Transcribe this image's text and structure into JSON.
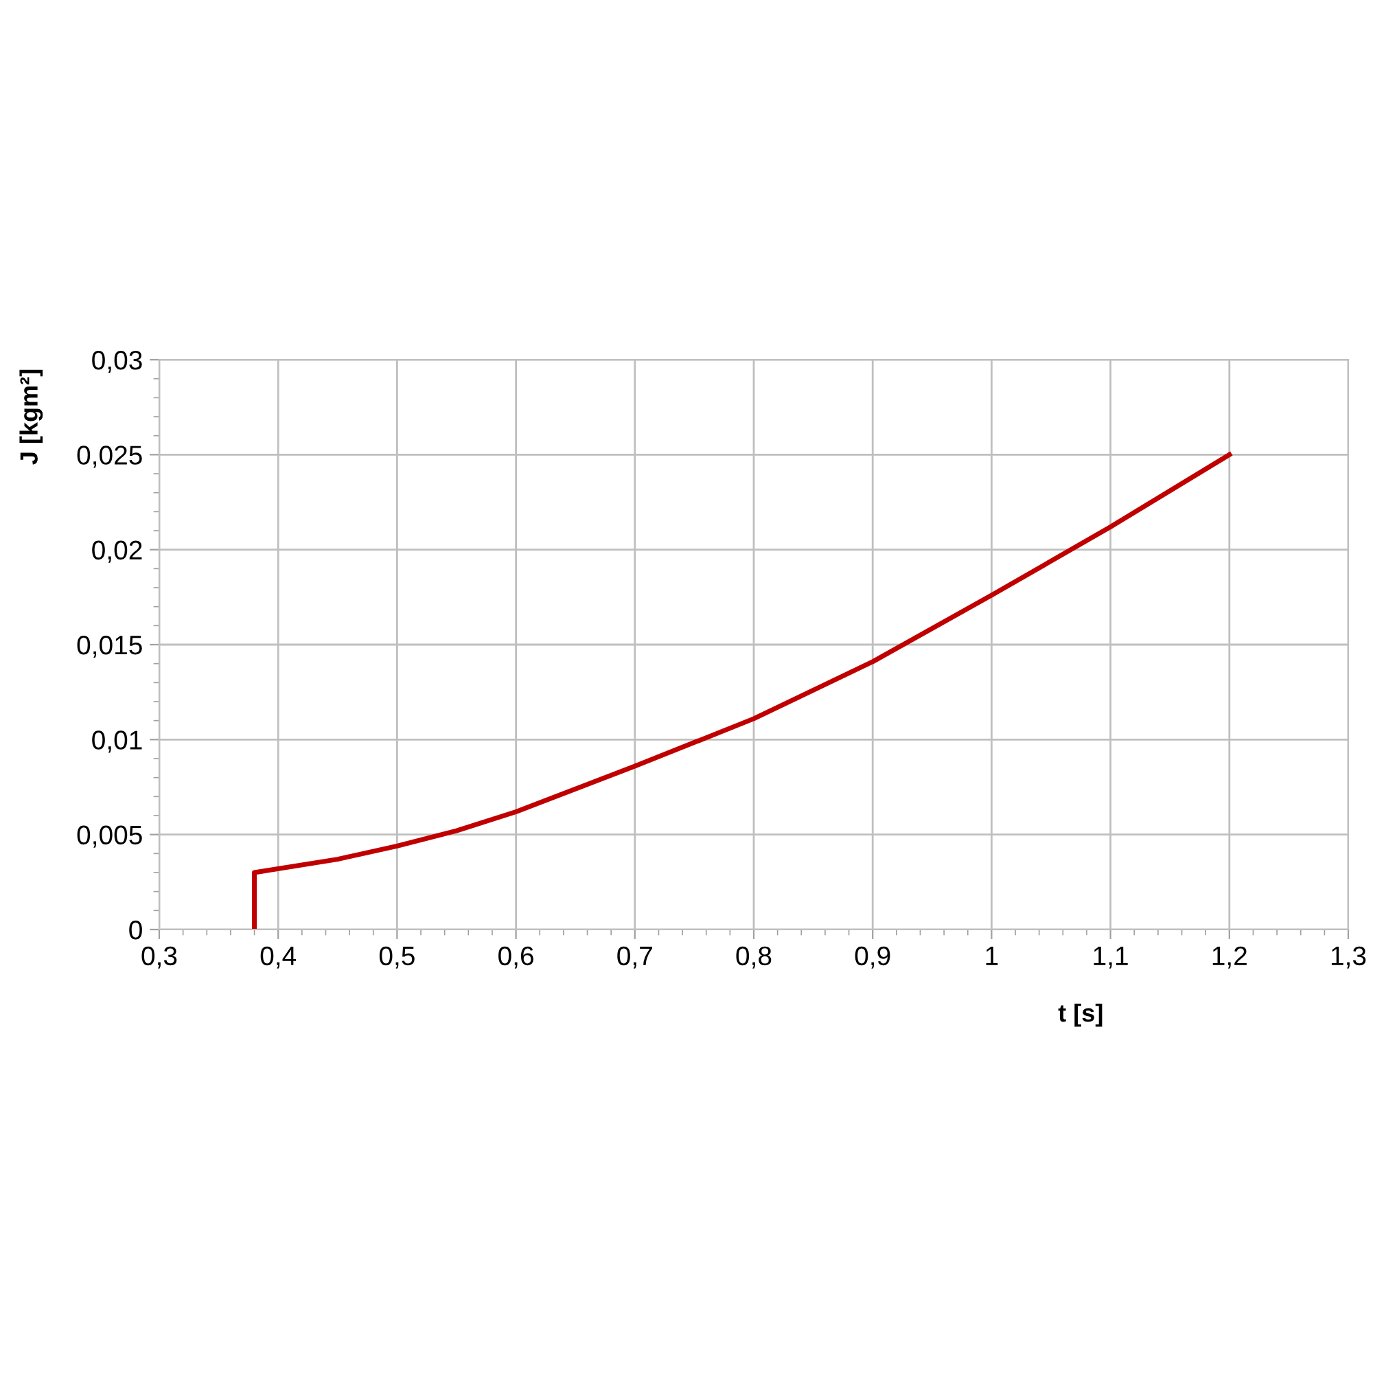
{
  "chart_data": {
    "type": "line",
    "xlabel": "t [s]",
    "ylabel": "J [kgm²]",
    "series": [
      {
        "color": "#c00000",
        "x": [
          0.38,
          0.38,
          0.45,
          0.5,
          0.55,
          0.6,
          0.7,
          0.8,
          0.9,
          1.0,
          1.1,
          1.2
        ],
        "values": [
          0,
          0.003,
          0.0037,
          0.0044,
          0.0052,
          0.0062,
          0.0086,
          0.0111,
          0.0141,
          0.0176,
          0.0212,
          0.025
        ]
      }
    ],
    "xlim": [
      0.3,
      1.3
    ],
    "ylim": [
      0,
      0.03
    ],
    "xticks": [
      {
        "value": 0.3,
        "label": "0,3"
      },
      {
        "value": 0.4,
        "label": "0,4"
      },
      {
        "value": 0.5,
        "label": "0,5"
      },
      {
        "value": 0.6,
        "label": "0,6"
      },
      {
        "value": 0.7,
        "label": "0,7"
      },
      {
        "value": 0.8,
        "label": "0,8"
      },
      {
        "value": 0.9,
        "label": "0,9"
      },
      1,
      {
        "value": 1.1,
        "label": "1,1"
      },
      {
        "value": 1.2,
        "label": "1,2"
      },
      {
        "value": 1.3,
        "label": "1,3"
      }
    ],
    "yticks": [
      0,
      {
        "value": 0.005,
        "label": "0,005"
      },
      {
        "value": 0.01,
        "label": "0,01"
      },
      {
        "value": 0.015,
        "label": "0,015"
      },
      {
        "value": 0.02,
        "label": "0,02"
      },
      {
        "value": 0.025,
        "label": "0,025"
      },
      {
        "value": 0.03,
        "label": "0,03"
      }
    ],
    "grid": true,
    "marker": "none",
    "line_style": "solid",
    "legend": false
  }
}
